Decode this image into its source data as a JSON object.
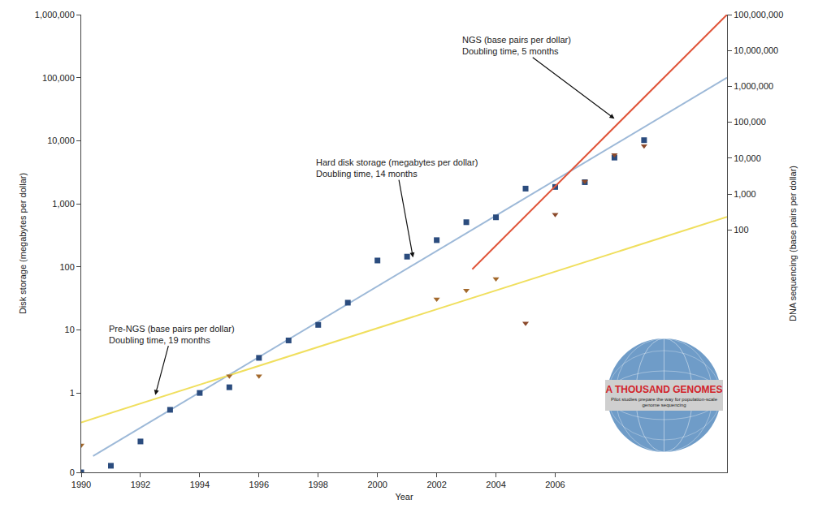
{
  "chart_data": {
    "type": "scatter",
    "x_label": "Year",
    "y_label": "Disk storage (megabytes per dollar)",
    "y2_label": "DNA sequencing (base pairs per dollar)",
    "log": "y",
    "grid": false,
    "xlim": [
      1990,
      2011.8
    ],
    "xticks": [
      1990,
      1992,
      1994,
      1996,
      1998,
      2000,
      2002,
      2004,
      2006
    ],
    "ylim": [
      0.055,
      1000000
    ],
    "yticks": [
      {
        "value": 0.055,
        "label": "0"
      },
      1,
      10,
      100,
      {
        "value": 1000,
        "label": "1,000"
      },
      {
        "value": 10000,
        "label": "10,000"
      },
      {
        "value": 100000,
        "label": "100,000"
      },
      {
        "value": 1000000,
        "label": "1,000,000"
      }
    ],
    "y2lim": [
      1.74e-05,
      100000000
    ],
    "y2ticks": [
      100,
      {
        "value": 1000,
        "label": "1,000"
      },
      {
        "value": 10000,
        "label": "10,000"
      },
      {
        "value": 100000,
        "label": "100,000"
      },
      {
        "value": 1000000,
        "label": "1,000,000"
      },
      {
        "value": 10000000,
        "label": "10,000,000"
      },
      {
        "value": 100000000,
        "label": "100,000,000"
      }
    ],
    "series": [
      {
        "type": "line",
        "color": "#9db9d8",
        "line_style": "solid",
        "x": [
          1990.4,
          2011.8
        ],
        "values": [
          0.1,
          100000
        ]
      },
      {
        "type": "line",
        "color": "#f0df5e",
        "line_style": "solid",
        "axis": "y2",
        "x": [
          1990,
          2011.8
        ],
        "values": [
          0.00043,
          230
        ]
      },
      {
        "type": "line",
        "color": "#e0553a",
        "line_style": "solid",
        "axis": "y2",
        "x": [
          2003.2,
          2011.8
        ],
        "values": [
          8,
          100000000
        ]
      },
      {
        "type": "scatter",
        "color": "#2b4c7e",
        "marker": "square",
        "x": [
          1990,
          1991,
          1992,
          1993,
          1994,
          1995,
          1996,
          1997,
          1998,
          1999,
          2000,
          2001,
          2002,
          2003,
          2004,
          2005,
          2006,
          2007,
          2008,
          2009
        ],
        "values": [
          0.055,
          0.07,
          0.17,
          0.54,
          1.0,
          1.23,
          3.6,
          6.8,
          12,
          27,
          126,
          145,
          265,
          510,
          610,
          1740,
          1850,
          2200,
          5400,
          10200
        ]
      },
      {
        "type": "scatter",
        "color": "#a3692c",
        "marker": "triangle-down",
        "axis": "y2",
        "x": [
          1990,
          1995,
          1996,
          2002,
          2003,
          2004
        ],
        "values": [
          0.0001,
          0.0085,
          0.0085,
          1.17,
          2.05,
          4.3
        ]
      },
      {
        "type": "scatter",
        "color": "#8b4a2b",
        "marker": "triangle-down",
        "axis": "y2",
        "x": [
          2005,
          2006,
          2007,
          2008,
          2009
        ],
        "values": [
          0.25,
          270,
          2240,
          12300,
          21800
        ]
      }
    ],
    "annotations": [
      {
        "lines": [
          "NGS (base pairs per dollar)",
          "Doubling time, 5 months"
        ],
        "axis": "y2"
      },
      {
        "lines": [
          "Hard disk storage (megabytes per dollar)",
          "Doubling time, 14 months"
        ]
      },
      {
        "lines": [
          "Pre-NGS (base pairs per dollar)",
          "Doubling time, 19 months"
        ],
        "axis": "y2"
      }
    ],
    "inset": {
      "title": "A THOUSAND GENOMES",
      "subtitle": "Pilot studies prepare the way for population-scale genome sequencing"
    }
  }
}
